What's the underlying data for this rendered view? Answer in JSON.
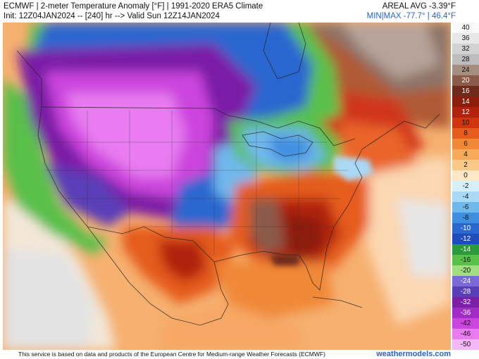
{
  "header": {
    "title_line1": "ECMWF | 2-meter Temperature Anomaly [°F] | 1991-2020 ERA5 Climate",
    "title_line2": "Init: 12Z04JAN2024 -- [240] hr --> Valid Sun 12Z14JAN2024",
    "areal_avg": "AREAL AVG -3.39°F",
    "min_max": "MIN|MAX -77.7° | 46.4°F"
  },
  "legend": {
    "ticks": [
      "40",
      "36",
      "32",
      "28",
      "24",
      "20",
      "16",
      "14",
      "12",
      "10",
      "8",
      "6",
      "4",
      "2",
      "0",
      "-2",
      "-4",
      "-6",
      "-8",
      "-10",
      "-12",
      "-14",
      "-16",
      "-20",
      "-24",
      "-28",
      "-32",
      "-36",
      "-42",
      "-46",
      "-50"
    ],
    "colors": [
      "#f9f9f9",
      "#e8e8e8",
      "#d2d2d2",
      "#bdbdbd",
      "#a58d80",
      "#8a5a4a",
      "#6e2a1a",
      "#8c1c0c",
      "#b0220b",
      "#d03510",
      "#e55c1c",
      "#f08838",
      "#f6aa5a",
      "#fac98a",
      "#fde7c4",
      "#d6f0fb",
      "#a9d9f5",
      "#6fb8ec",
      "#3f8fe0",
      "#2a68cf",
      "#1e4dbb",
      "#2a9a3a",
      "#59c04a",
      "#a0de80",
      "#7a6ad8",
      "#5a3eb8",
      "#7a1fa6",
      "#a22ac6",
      "#cb44dd",
      "#e87cf0",
      "#f4b8f8"
    ]
  },
  "footer": {
    "credit": "This service is based on data and products of the European Centre for Medium-range Weather Forecasts (ECMWF)",
    "site": "weathermodels.com"
  }
}
